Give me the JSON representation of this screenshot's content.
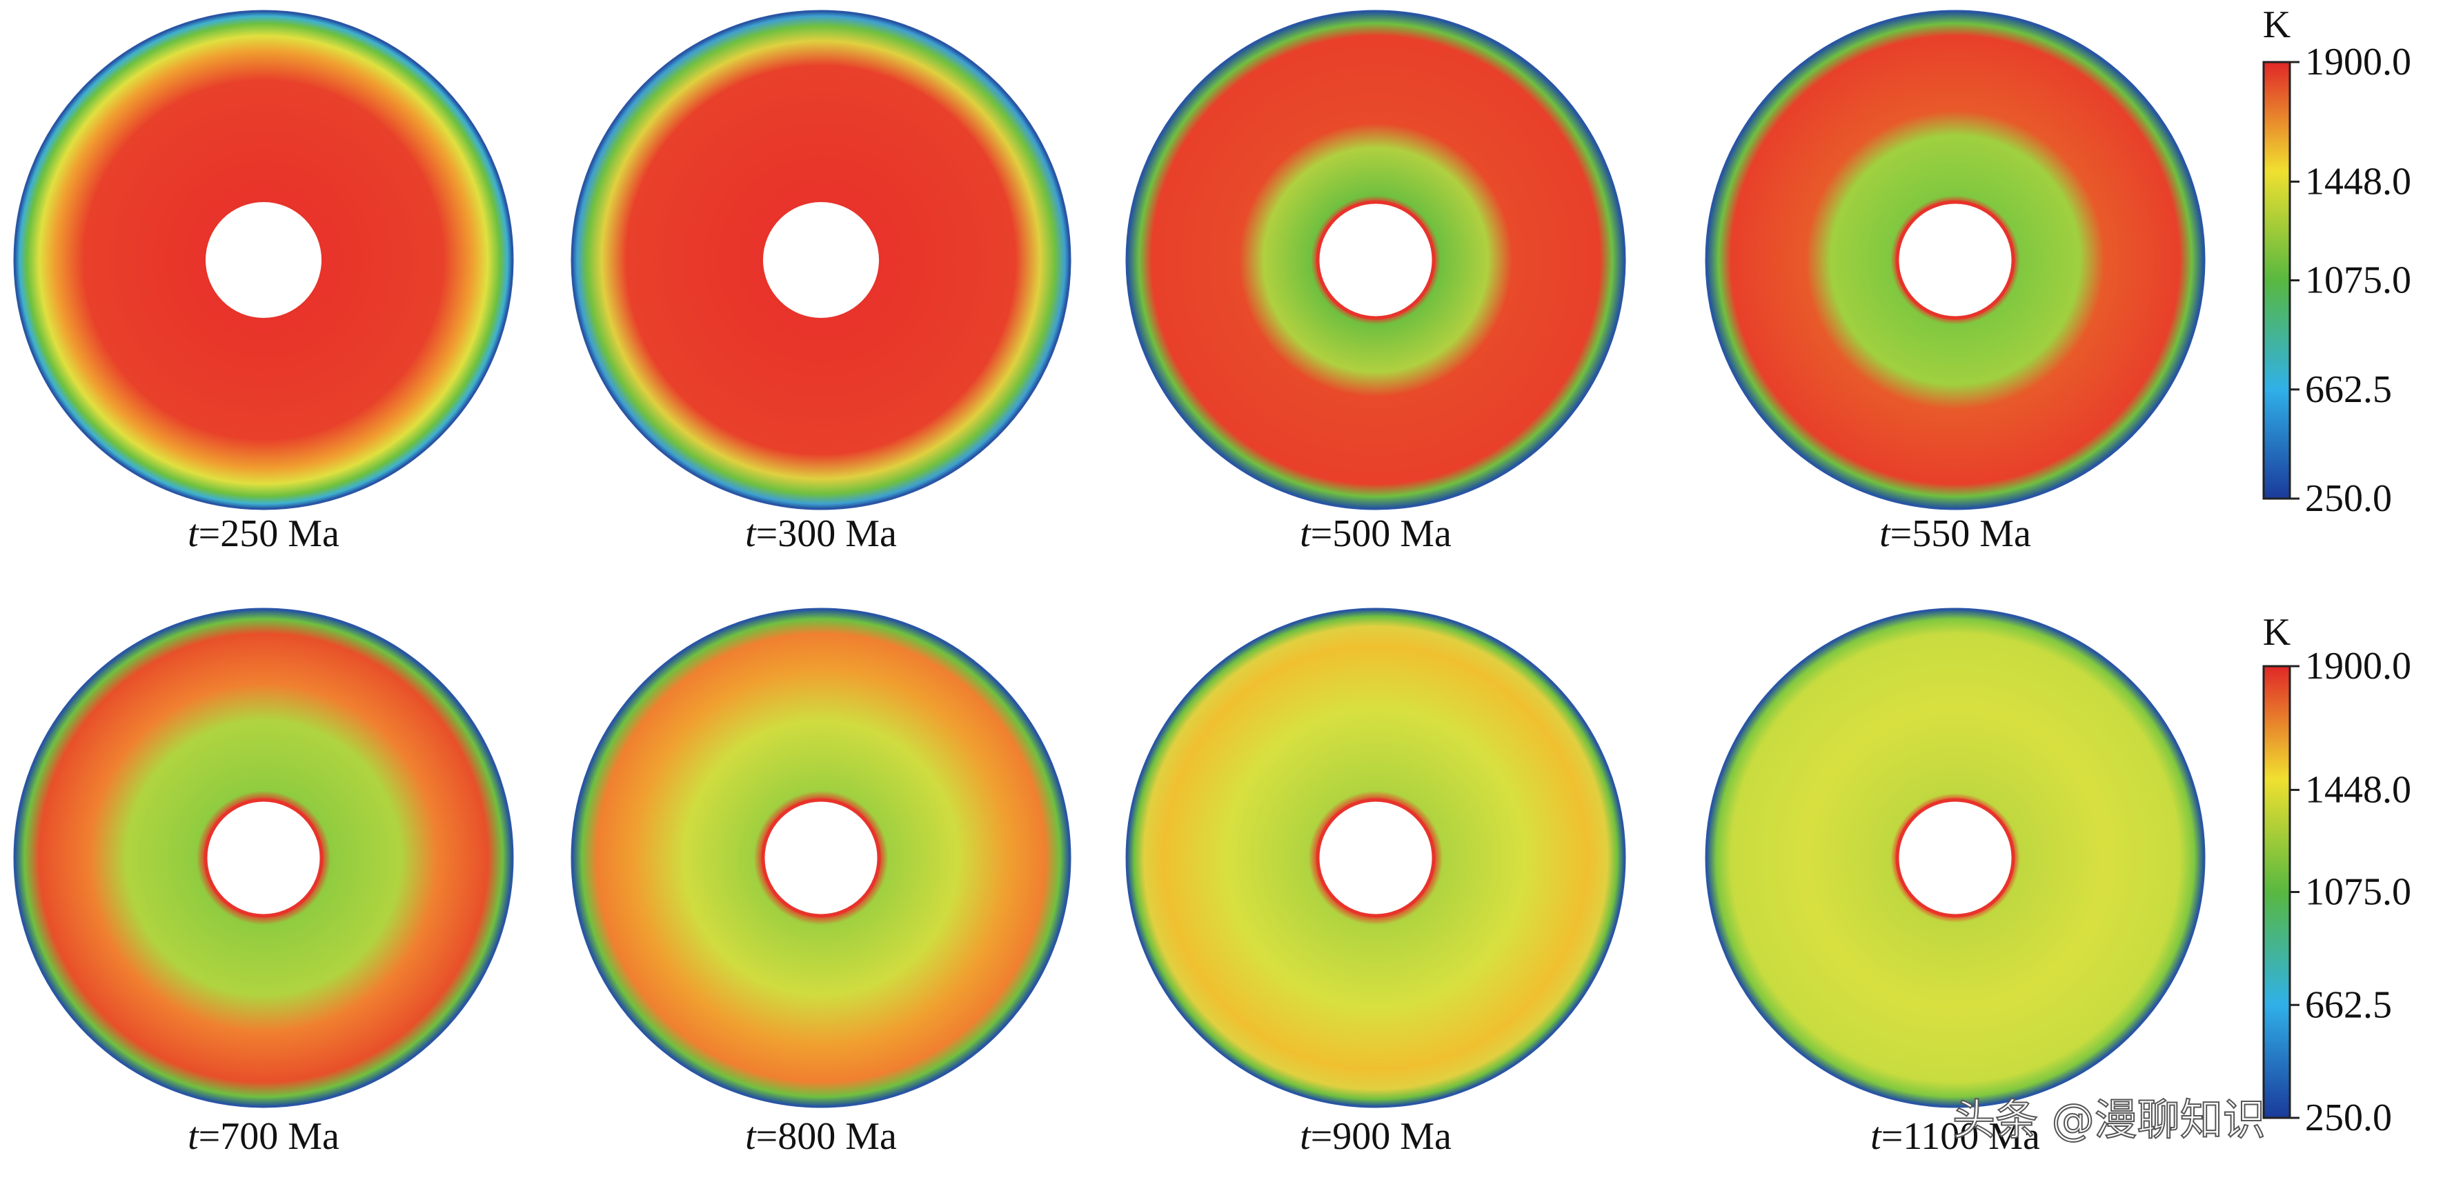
{
  "panels": [
    {
      "var": "t",
      "rest": "=250 Ma"
    },
    {
      "var": "t",
      "rest": "=300 Ma"
    },
    {
      "var": "t",
      "rest": "=500 Ma"
    },
    {
      "var": "t",
      "rest": "=550 Ma"
    },
    {
      "var": "t",
      "rest": "=700 Ma"
    },
    {
      "var": "t",
      "rest": "=800 Ma"
    },
    {
      "var": "t",
      "rest": "=900 Ma"
    },
    {
      "var": "t",
      "rest": "=1100 Ma"
    }
  ],
  "colorbars": [
    {
      "unit": "K",
      "ticks": [
        {
          "value": 1900,
          "label": "1900.0"
        },
        {
          "value": 1448,
          "label": "1448.0"
        },
        {
          "value": 1075,
          "label": "1075.0"
        },
        {
          "value": 662.5,
          "label": "662.5"
        },
        {
          "value": 250,
          "label": "250.0"
        }
      ]
    },
    {
      "unit": "K",
      "ticks": [
        {
          "value": 1900,
          "label": "1900.0"
        },
        {
          "value": 1448,
          "label": "1448.0"
        },
        {
          "value": 1075,
          "label": "1075.0"
        },
        {
          "value": 662.5,
          "label": "662.5"
        },
        {
          "value": 250,
          "label": "250.0"
        }
      ]
    }
  ],
  "watermark": "头条 @漫聊知识"
}
